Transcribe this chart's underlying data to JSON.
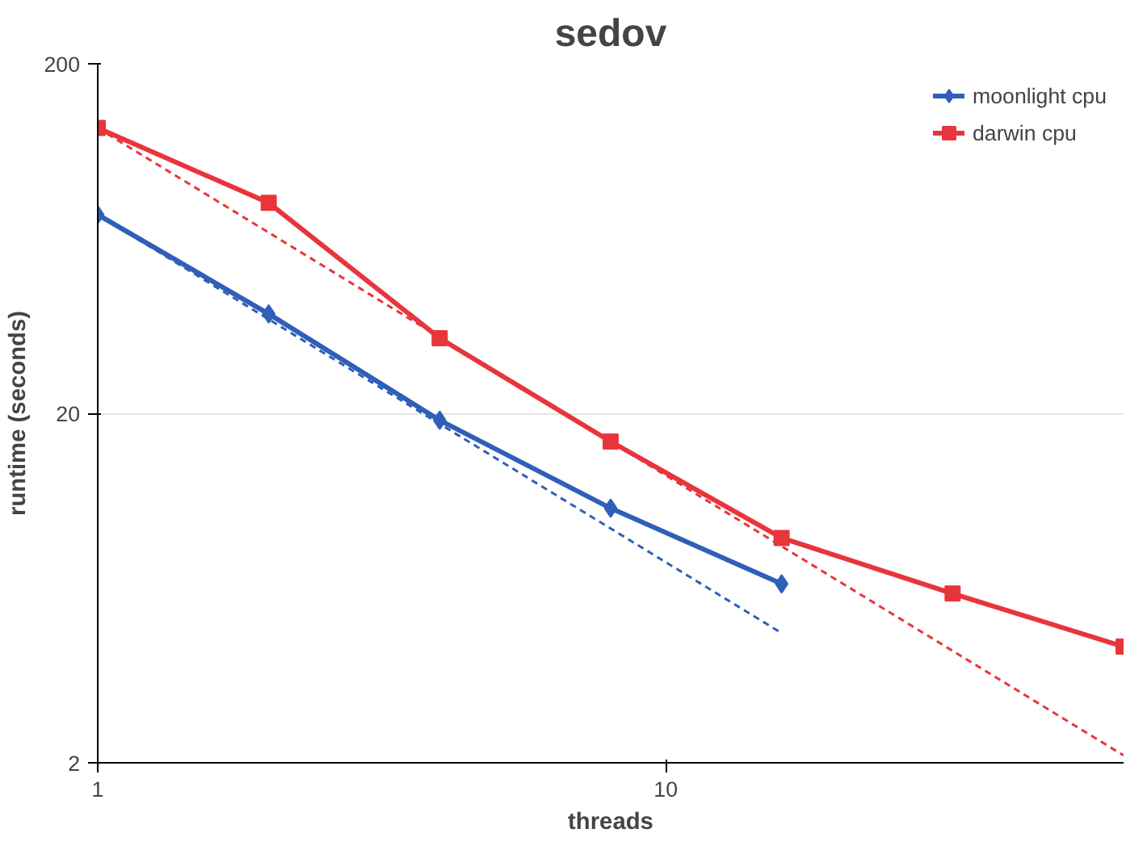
{
  "chart_data": {
    "type": "line",
    "title": "sedov",
    "xlabel": "threads",
    "ylabel": "runtime (seconds)",
    "log": "xy",
    "xlim": [
      1,
      64
    ],
    "ylim": [
      2,
      200
    ],
    "xticks": [
      1,
      10
    ],
    "yticks": [
      2,
      20,
      200
    ],
    "grid": "y",
    "legend": "top right",
    "series": [
      {
        "name": "moonlight cpu",
        "color": "#2f5fb8",
        "marker": "diamond",
        "x": [
          1,
          2,
          4,
          8,
          16
        ],
        "values": [
          74,
          38.5,
          19.1,
          10.7,
          6.5
        ]
      },
      {
        "name": "darwin cpu",
        "color": "#e8353c",
        "marker": "square",
        "x": [
          1,
          2,
          4,
          8,
          16,
          32,
          64
        ],
        "values": [
          131,
          80,
          32.8,
          16.6,
          8.8,
          6.1,
          4.3
        ]
      },
      {
        "color": "#2f5fb8",
        "marker": "none",
        "line_style": "dashed",
        "x": [
          1,
          16
        ],
        "values": [
          74,
          4.7
        ]
      },
      {
        "color": "#e8353c",
        "marker": "none",
        "line_style": "dashed",
        "x": [
          1,
          64
        ],
        "values": [
          131,
          2.1
        ]
      }
    ]
  }
}
